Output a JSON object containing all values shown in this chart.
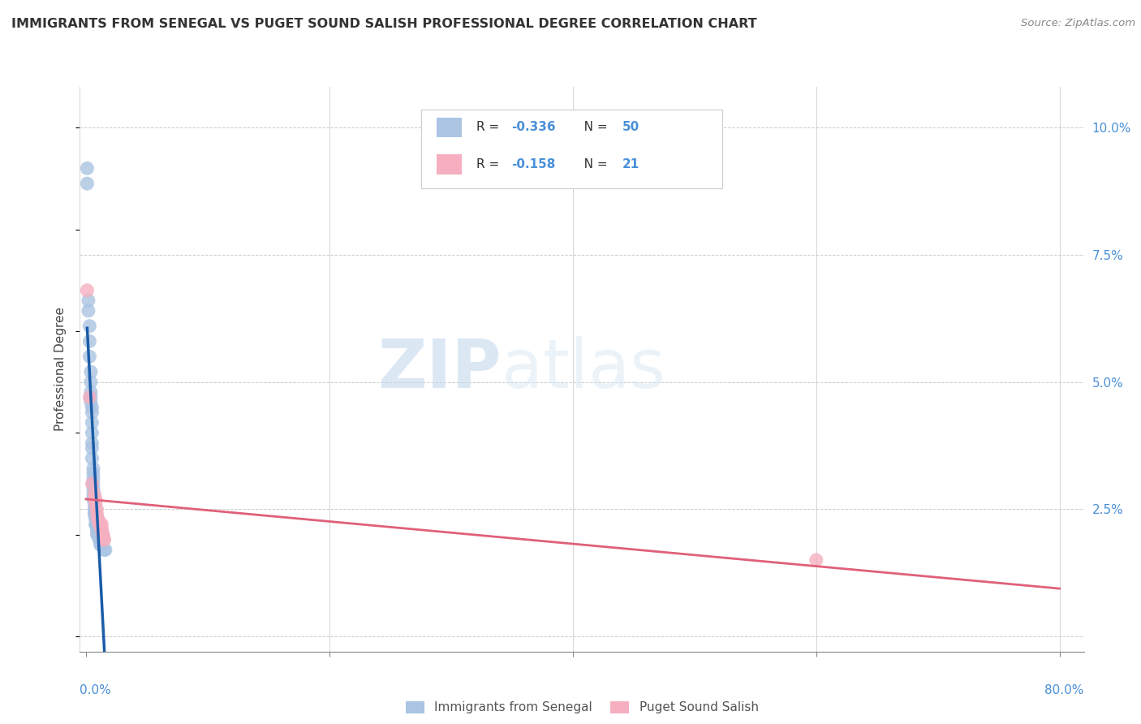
{
  "title": "IMMIGRANTS FROM SENEGAL VS PUGET SOUND SALISH PROFESSIONAL DEGREE CORRELATION CHART",
  "source": "Source: ZipAtlas.com",
  "ylabel": "Professional Degree",
  "watermark_zip": "ZIP",
  "watermark_atlas": "atlas",
  "blue_label": "Immigrants from Senegal",
  "pink_label": "Puget Sound Salish",
  "blue_R": -0.336,
  "blue_N": 50,
  "pink_R": -0.158,
  "pink_N": 21,
  "blue_color": "#aac4e2",
  "pink_color": "#f5afc0",
  "blue_line_color": "#1a5ca8",
  "pink_line_color": "#e0607a",
  "blue_scatter_x": [
    0.1,
    0.2,
    0.2,
    0.3,
    0.3,
    0.3,
    0.4,
    0.4,
    0.4,
    0.4,
    0.4,
    0.5,
    0.5,
    0.5,
    0.5,
    0.5,
    0.5,
    0.5,
    0.6,
    0.6,
    0.6,
    0.6,
    0.6,
    0.6,
    0.6,
    0.6,
    0.7,
    0.7,
    0.7,
    0.7,
    0.7,
    0.8,
    0.8,
    0.8,
    0.8,
    0.8,
    0.9,
    0.9,
    0.9,
    1.0,
    1.0,
    1.0,
    1.1,
    1.1,
    1.2,
    1.2,
    1.2,
    1.5,
    1.6,
    0.1
  ],
  "blue_scatter_y": [
    8.9,
    6.6,
    6.4,
    6.1,
    5.8,
    5.5,
    5.2,
    5.0,
    4.8,
    4.7,
    4.6,
    4.5,
    4.4,
    4.2,
    4.0,
    3.8,
    3.7,
    3.5,
    3.3,
    3.2,
    3.1,
    3.0,
    2.9,
    2.8,
    2.7,
    2.7,
    2.6,
    2.5,
    2.5,
    2.4,
    2.4,
    2.3,
    2.3,
    2.2,
    2.2,
    2.2,
    2.1,
    2.1,
    2.0,
    2.0,
    2.0,
    2.0,
    1.9,
    1.9,
    1.9,
    1.8,
    1.8,
    1.7,
    1.7,
    9.2
  ],
  "pink_scatter_x": [
    0.1,
    0.3,
    0.5,
    0.7,
    0.7,
    0.8,
    0.8,
    0.9,
    0.9,
    1.0,
    1.0,
    1.1,
    1.2,
    1.3,
    1.3,
    1.3,
    1.4,
    1.4,
    1.5,
    1.5,
    60.0
  ],
  "pink_scatter_y": [
    6.8,
    4.7,
    3.0,
    2.8,
    2.7,
    2.7,
    2.6,
    2.5,
    2.4,
    2.3,
    2.3,
    2.2,
    2.2,
    2.2,
    2.1,
    2.1,
    2.0,
    2.0,
    1.9,
    1.9,
    1.5
  ],
  "xlim": [
    -0.5,
    82.0
  ],
  "ylim": [
    -0.3,
    10.8
  ],
  "xticks": [
    0.0,
    20.0,
    40.0,
    60.0,
    80.0
  ],
  "xtick_labels": [
    "0.0%",
    "",
    "",
    "",
    ""
  ],
  "x_bottom_left": "0.0%",
  "x_bottom_right": "80.0%",
  "ytick_right": [
    0.0,
    2.5,
    5.0,
    7.5,
    10.0
  ],
  "ytick_right_labels": [
    "",
    "2.5%",
    "5.0%",
    "7.5%",
    "10.0%"
  ],
  "tick_color": "#4a90d9"
}
